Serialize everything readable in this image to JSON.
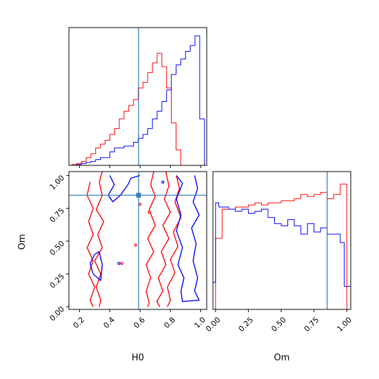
{
  "chart_data": [
    {
      "type": "histogram",
      "panel": "H0 marginal",
      "x_range": [
        0.13,
        1.04
      ],
      "bin_width": 0.03125,
      "truth": 0.59,
      "series": [
        {
          "color": "#ff0000",
          "bin_starts": [
            0.15,
            0.18125,
            0.2125,
            0.24375,
            0.275,
            0.30625,
            0.3375,
            0.36875,
            0.4,
            0.43125,
            0.4625,
            0.49375,
            0.525,
            0.55625,
            0.5875,
            0.61875,
            0.65,
            0.68125,
            0.7125,
            0.74375,
            0.775,
            0.80625,
            0.8375
          ],
          "values": [
            0.5,
            1,
            2,
            4,
            6,
            9,
            11,
            13,
            16,
            19,
            24,
            28,
            31,
            34,
            40,
            43,
            48,
            53,
            58,
            51,
            40,
            22,
            8
          ]
        },
        {
          "color": "#0000ff",
          "bin_starts": [
            0.15,
            0.18125,
            0.2125,
            0.24375,
            0.275,
            0.30625,
            0.3375,
            0.36875,
            0.4,
            0.43125,
            0.4625,
            0.49375,
            0.525,
            0.55625,
            0.5875,
            0.61875,
            0.65,
            0.68125,
            0.7125,
            0.74375,
            0.775,
            0.80625,
            0.8375,
            0.86875,
            0.9,
            0.93125,
            0.9625,
            0.99375
          ],
          "values": [
            0,
            0.5,
            1,
            1.5,
            2,
            3,
            4,
            4,
            7,
            9,
            9,
            10,
            10,
            12,
            14,
            16,
            19,
            24,
            28,
            33,
            39,
            47,
            52,
            55,
            59,
            62,
            67,
            24
          ]
        }
      ]
    },
    {
      "type": "contour",
      "panel": "H0 vs Om",
      "xlabel": "H0",
      "ylabel": "Om",
      "xlim": [
        0.13,
        1.04
      ],
      "ylim": [
        -0.02,
        1.03
      ],
      "xticks": [
        "0.2",
        "0.4",
        "0.6",
        "0.8",
        "1.0"
      ],
      "yticks": [
        "0.00",
        "0.25",
        "0.50",
        "0.75",
        "1.00"
      ],
      "truth": {
        "H0": 0.59,
        "Om": 0.85
      },
      "contours": [
        {
          "color": "#ff0000",
          "points": [
            [
              0.35,
              1.03
            ],
            [
              0.33,
              0.95
            ],
            [
              0.35,
              0.85
            ],
            [
              0.31,
              0.74
            ],
            [
              0.36,
              0.65
            ],
            [
              0.32,
              0.55
            ],
            [
              0.35,
              0.45
            ],
            [
              0.3,
              0.35
            ],
            [
              0.34,
              0.25
            ],
            [
              0.31,
              0.15
            ],
            [
              0.34,
              0.05
            ],
            [
              0.33,
              0.0
            ]
          ]
        },
        {
          "color": "#ff0000",
          "points": [
            [
              0.27,
              0.95
            ],
            [
              0.25,
              0.85
            ],
            [
              0.29,
              0.75
            ],
            [
              0.26,
              0.65
            ],
            [
              0.29,
              0.55
            ],
            [
              0.25,
              0.45
            ],
            [
              0.29,
              0.35
            ],
            [
              0.26,
              0.25
            ],
            [
              0.3,
              0.15
            ],
            [
              0.27,
              0.05
            ],
            [
              0.29,
              0.0
            ]
          ]
        },
        {
          "color": "#ff0000",
          "points": [
            [
              0.69,
              1.03
            ],
            [
              0.67,
              0.93
            ],
            [
              0.7,
              0.84
            ],
            [
              0.66,
              0.74
            ],
            [
              0.7,
              0.62
            ],
            [
              0.65,
              0.52
            ],
            [
              0.69,
              0.42
            ],
            [
              0.64,
              0.32
            ],
            [
              0.67,
              0.22
            ],
            [
              0.64,
              0.12
            ],
            [
              0.66,
              0.03
            ],
            [
              0.65,
              0.0
            ]
          ]
        },
        {
          "color": "#ff0000",
          "points": [
            [
              0.77,
              1.03
            ],
            [
              0.79,
              0.92
            ],
            [
              0.76,
              0.82
            ],
            [
              0.8,
              0.72
            ],
            [
              0.75,
              0.62
            ],
            [
              0.79,
              0.52
            ],
            [
              0.74,
              0.42
            ],
            [
              0.77,
              0.32
            ],
            [
              0.72,
              0.22
            ],
            [
              0.75,
              0.12
            ],
            [
              0.71,
              0.04
            ],
            [
              0.73,
              0.0
            ]
          ]
        },
        {
          "color": "#ff0000",
          "points": [
            [
              0.84,
              1.0
            ],
            [
              0.86,
              0.9
            ],
            [
              0.83,
              0.8
            ],
            [
              0.87,
              0.68
            ],
            [
              0.82,
              0.57
            ],
            [
              0.85,
              0.46
            ],
            [
              0.8,
              0.36
            ],
            [
              0.83,
              0.26
            ],
            [
              0.78,
              0.15
            ],
            [
              0.8,
              0.05
            ],
            [
              0.78,
              0.0
            ]
          ]
        },
        {
          "color": "#0000ff",
          "points": [
            [
              0.96,
              1.0
            ],
            [
              0.98,
              0.9
            ],
            [
              0.95,
              0.8
            ],
            [
              0.99,
              0.7
            ],
            [
              0.94,
              0.6
            ],
            [
              0.97,
              0.48
            ],
            [
              0.95,
              0.35
            ],
            [
              0.98,
              0.22
            ],
            [
              0.96,
              0.12
            ],
            [
              0.99,
              0.05
            ],
            [
              0.88,
              0.04
            ],
            [
              0.87,
              0.12
            ],
            [
              0.89,
              0.22
            ],
            [
              0.85,
              0.32
            ],
            [
              0.88,
              0.45
            ],
            [
              0.84,
              0.58
            ],
            [
              0.87,
              0.7
            ],
            [
              0.84,
              0.82
            ],
            [
              0.88,
              0.94
            ],
            [
              0.84,
              1.0
            ]
          ]
        },
        {
          "color": "#0000ff",
          "points": [
            [
              0.4,
              1.0
            ],
            [
              0.43,
              0.93
            ],
            [
              0.39,
              0.85
            ],
            [
              0.42,
              0.8
            ],
            [
              0.47,
              0.85
            ],
            [
              0.52,
              0.93
            ],
            [
              0.54,
              0.98
            ],
            [
              0.6,
              1.0
            ]
          ]
        },
        {
          "color": "#0000ff",
          "points": [
            [
              0.3,
              0.4
            ],
            [
              0.27,
              0.33
            ],
            [
              0.29,
              0.25
            ],
            [
              0.34,
              0.2
            ],
            [
              0.35,
              0.32
            ],
            [
              0.33,
              0.42
            ],
            [
              0.3,
              0.4
            ]
          ]
        }
      ]
    },
    {
      "type": "histogram",
      "panel": "Om marginal",
      "xlabel": "Om",
      "x_range": [
        -0.02,
        1.03
      ],
      "xticks": [
        "0.00",
        "0.25",
        "0.50",
        "0.75",
        "1.00"
      ],
      "bin_width": 0.05,
      "truth": 0.85,
      "series": [
        {
          "color": "#ff0000",
          "bin_starts": [
            0,
            0.05,
            0.1,
            0.15,
            0.2,
            0.25,
            0.3,
            0.35,
            0.4,
            0.45,
            0.5,
            0.55,
            0.6,
            0.65,
            0.7,
            0.75,
            0.8,
            0.85,
            0.9,
            0.95
          ],
          "values": [
            34,
            48,
            48,
            49,
            49,
            50,
            51,
            50,
            51,
            51,
            52,
            52,
            53,
            55,
            54,
            55,
            56,
            53,
            55,
            60
          ]
        },
        {
          "color": "#0000ff",
          "bin_starts": [
            -0.02,
            0,
            0.025,
            0.05,
            0.1,
            0.15,
            0.2,
            0.25,
            0.3,
            0.35,
            0.4,
            0.45,
            0.5,
            0.55,
            0.6,
            0.65,
            0.7,
            0.75,
            0.8,
            0.85,
            0.9,
            0.95,
            0.98
          ],
          "values": [
            13,
            51,
            49,
            49,
            48,
            47,
            48,
            46,
            47,
            48,
            44,
            41,
            40,
            43,
            40,
            36,
            41,
            37,
            39,
            36,
            36,
            32,
            11
          ]
        }
      ]
    }
  ]
}
